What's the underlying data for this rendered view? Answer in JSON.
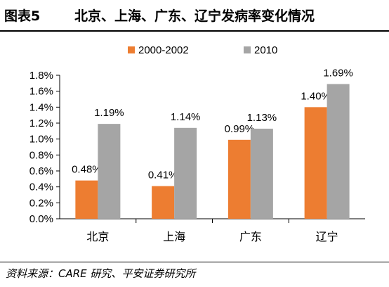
{
  "header": {
    "figure_number": "图表5",
    "title": "北京、上海、广东、辽宁发病率变化情况"
  },
  "footer": {
    "source": "资料来源：CARE 研究、平安证券研究所"
  },
  "chart_data": {
    "type": "bar",
    "title": "北京、上海、广东、辽宁发病率变化情况",
    "xlabel": "",
    "ylabel": "",
    "categories": [
      "北京",
      "上海",
      "广东",
      "辽宁"
    ],
    "series": [
      {
        "name": "2000-2002",
        "values": [
          0.48,
          0.41,
          0.99,
          1.4
        ],
        "labels": [
          "0.48%",
          "0.41%",
          "0.99%",
          "1.40%"
        ],
        "color": "#ED7D31"
      },
      {
        "name": "2010",
        "values": [
          1.19,
          1.14,
          1.13,
          1.69
        ],
        "labels": [
          "1.19%",
          "1.14%",
          "1.13%",
          "1.69%"
        ],
        "color": "#A5A5A5"
      }
    ],
    "ylim": [
      0,
      1.8
    ],
    "yticks": [
      "0.0%",
      "0.2%",
      "0.4%",
      "0.6%",
      "0.8%",
      "1.0%",
      "1.2%",
      "1.4%",
      "1.6%",
      "1.8%"
    ],
    "grid": false,
    "legend_position": "top"
  }
}
